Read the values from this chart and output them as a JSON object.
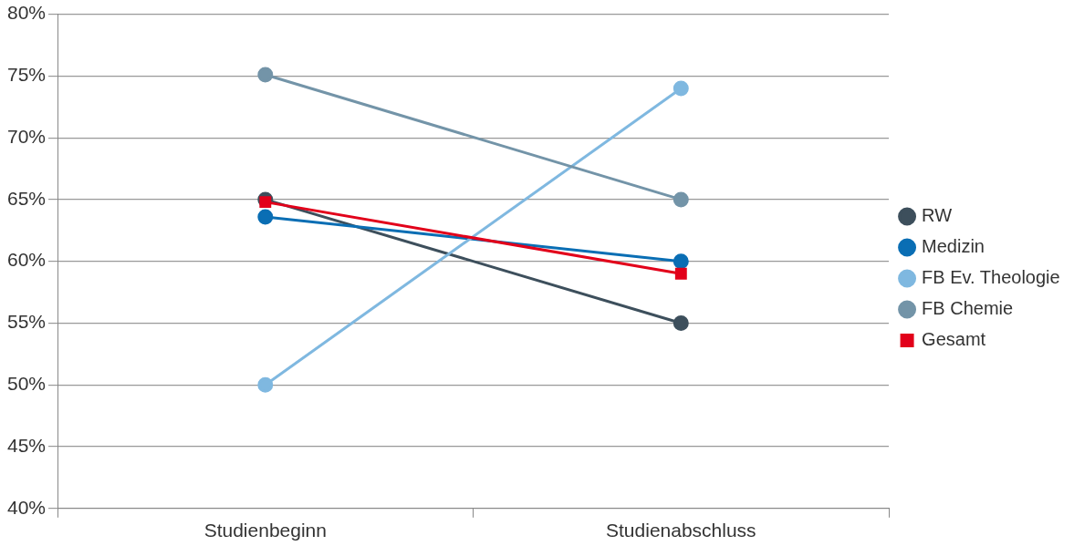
{
  "chart_data": {
    "type": "line",
    "categories": [
      "Studienbeginn",
      "Studienabschluss"
    ],
    "series": [
      {
        "name": "RW",
        "color": "#3d4f5c",
        "values": [
          65,
          55
        ],
        "marker": "circle"
      },
      {
        "name": "Medizin",
        "color": "#0a6eb4",
        "values": [
          63.6,
          60
        ],
        "marker": "circle"
      },
      {
        "name": "FB Ev. Theologie",
        "color": "#7fb8e0",
        "values": [
          50,
          74
        ],
        "marker": "circle"
      },
      {
        "name": "FB Chemie",
        "color": "#7394a8",
        "values": [
          75.1,
          65
        ],
        "marker": "circle"
      },
      {
        "name": "Gesamt",
        "color": "#e2001a",
        "values": [
          64.8,
          59
        ],
        "marker": "square"
      }
    ],
    "ylim": [
      40,
      80
    ],
    "yticks": [
      {
        "value": 40,
        "label": "40%"
      },
      {
        "value": 45,
        "label": "45%"
      },
      {
        "value": 50,
        "label": "50%"
      },
      {
        "value": 55,
        "label": "55%"
      },
      {
        "value": 60,
        "label": "60%"
      },
      {
        "value": 65,
        "label": "65%"
      },
      {
        "value": 70,
        "label": "70%"
      },
      {
        "value": 75,
        "label": "75%"
      },
      {
        "value": 80,
        "label": "80%"
      }
    ],
    "grid": "y",
    "legend": "right",
    "line_style": "solid"
  }
}
